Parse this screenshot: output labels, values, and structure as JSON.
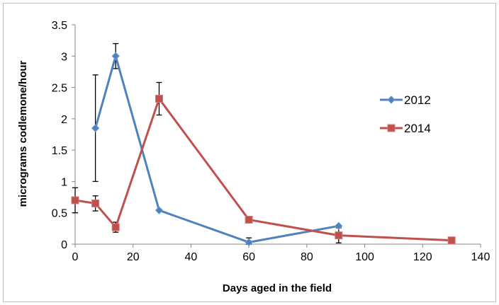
{
  "chart_data": {
    "type": "line",
    "title": "",
    "xlabel": "Days aged in the field",
    "ylabel": "micrograms codlemone/hour",
    "xlim": [
      0,
      140
    ],
    "ylim": [
      0,
      3.5
    ],
    "x_ticks": [
      "0",
      "20",
      "40",
      "60",
      "80",
      "100",
      "120",
      "140"
    ],
    "y_ticks": [
      "0",
      "0.5",
      "1",
      "1.5",
      "2",
      "2.5",
      "3",
      "3.5"
    ],
    "grid": false,
    "legend_position": "right",
    "series": [
      {
        "name": "2012",
        "color": "#4f81bd",
        "marker": "diamond",
        "x": [
          7,
          14,
          29,
          60,
          91
        ],
        "y": [
          1.85,
          3.0,
          0.54,
          0.03,
          0.29
        ],
        "err": [
          0.85,
          0.2,
          null,
          0.07,
          null
        ]
      },
      {
        "name": "2014",
        "color": "#c0504d",
        "marker": "square",
        "x": [
          0,
          7,
          14,
          29,
          60,
          91,
          130
        ],
        "y": [
          0.7,
          0.65,
          0.27,
          2.32,
          0.39,
          0.14,
          0.06
        ],
        "err": [
          0.2,
          0.12,
          0.08,
          0.26,
          null,
          0.12,
          null
        ]
      }
    ]
  }
}
